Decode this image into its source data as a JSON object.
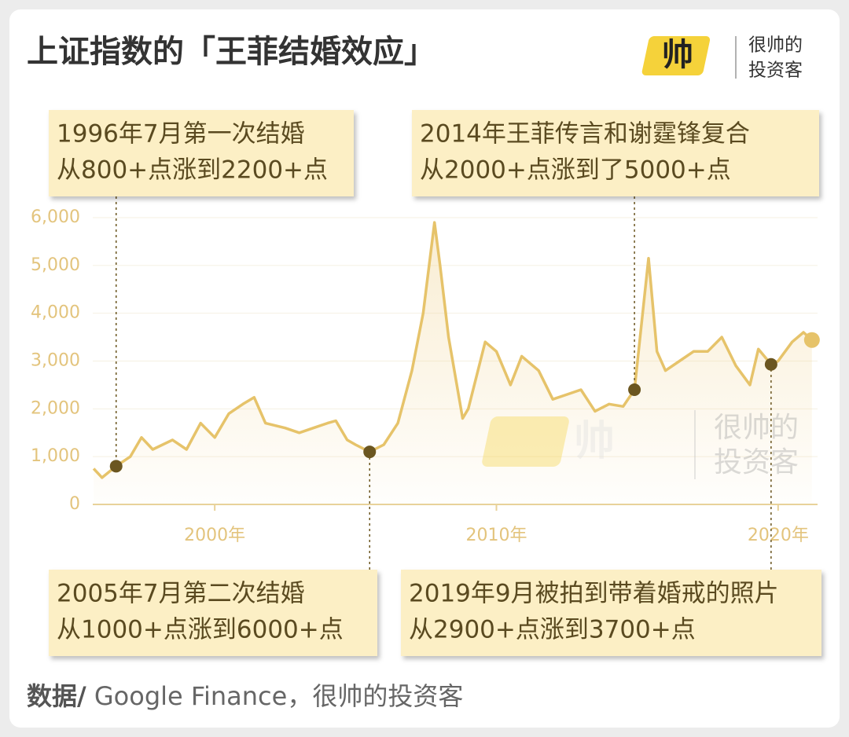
{
  "chart_data": {
    "type": "line",
    "title": "上证指数的「王菲结婚效应」",
    "logo": {
      "icon": "帅",
      "line1": "很帅的",
      "line2": "投资客"
    },
    "source_label": "数据/",
    "source": " Google Finance，很帅的投资客",
    "xlim": [
      1995.67,
      2021.4
    ],
    "ylim": [
      0,
      6000
    ],
    "xticks": [
      {
        "value": 2000,
        "label": "2000年"
      },
      {
        "value": 2010,
        "label": "2010年"
      },
      {
        "value": 2020,
        "label": "2020年"
      }
    ],
    "yticks": [
      0,
      {
        "value": 1000,
        "label": "1,000"
      },
      {
        "value": 2000,
        "label": "2,000"
      },
      {
        "value": 3000,
        "label": "3,000"
      },
      {
        "value": 4000,
        "label": "4,000"
      },
      {
        "value": 5000,
        "label": "5,000"
      },
      {
        "value": 6000,
        "label": "6,000"
      }
    ],
    "grid": true,
    "color": "#e6c36a",
    "x": [
      1995.7,
      1996.0,
      1996.5,
      1997.0,
      1997.4,
      1997.8,
      1998.5,
      1999.0,
      1999.5,
      2000.0,
      2000.5,
      2001.0,
      2001.4,
      2001.8,
      2002.5,
      2003.0,
      2003.5,
      2004.0,
      2004.3,
      2004.7,
      2005.0,
      2005.5,
      2006.0,
      2006.5,
      2007.0,
      2007.4,
      2007.8,
      2008.0,
      2008.3,
      2008.8,
      2009.0,
      2009.6,
      2010.0,
      2010.5,
      2010.9,
      2011.5,
      2012.0,
      2012.5,
      2013.0,
      2013.5,
      2014.0,
      2014.5,
      2014.9,
      2015.4,
      2015.7,
      2016.0,
      2016.5,
      2017.0,
      2017.5,
      2018.0,
      2018.5,
      2019.0,
      2019.3,
      2019.75,
      2020.0,
      2020.5,
      2020.9,
      2021.2
    ],
    "values": [
      750,
      560,
      800,
      1000,
      1400,
      1150,
      1350,
      1150,
      1700,
      1400,
      1900,
      2100,
      2240,
      1700,
      1600,
      1500,
      1600,
      1700,
      1750,
      1350,
      1250,
      1100,
      1250,
      1700,
      2800,
      4000,
      5900,
      5000,
      3500,
      1800,
      2000,
      3400,
      3200,
      2500,
      3100,
      2800,
      2200,
      2300,
      2400,
      1950,
      2100,
      2050,
      2400,
      5150,
      3200,
      2800,
      3000,
      3200,
      3200,
      3500,
      2900,
      2500,
      3250,
      2930,
      3000,
      3400,
      3600,
      3440
    ],
    "annotations": [
      {
        "x": 1996.5,
        "y": 800,
        "lines": [
          "1996年7月第一次结婚",
          "从800+点涨到2200+点"
        ]
      },
      {
        "x": 2005.5,
        "y": 1100,
        "lines": [
          "2005年7月第二次结婚",
          "从1000+点涨到6000+点"
        ]
      },
      {
        "x": 2014.9,
        "y": 2400,
        "lines": [
          "2014年王菲传言和谢霆锋复合",
          "从2000+点涨到了5000+点"
        ]
      },
      {
        "x": 2019.75,
        "y": 2930,
        "lines": [
          "2019年9月被拍到带着婚戒的照片",
          "从2900+点涨到3700+点"
        ]
      }
    ]
  }
}
